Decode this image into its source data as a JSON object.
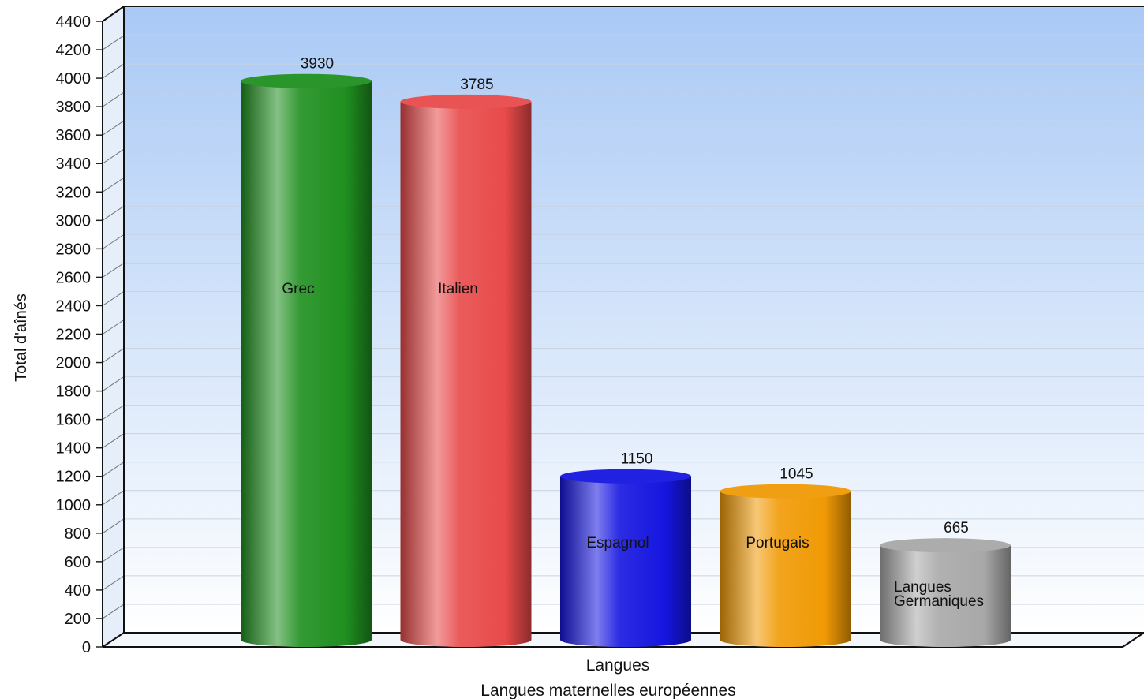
{
  "chart_data": {
    "type": "bar",
    "style": "3d-cylinder",
    "categories": [
      "Grec",
      "Italien",
      "Espagnol",
      "Portugais",
      "Langues Germaniques"
    ],
    "values": [
      3930,
      3785,
      1150,
      1045,
      665
    ],
    "colors": [
      "#1f8f1f",
      "#e84a4a",
      "#1515e0",
      "#f09a05",
      "#a8a8a8"
    ],
    "xlabel": "Langues",
    "ylabel": "Total d'aînés",
    "footer": "Langues maternelles européennes",
    "ylim": [
      0,
      4400
    ],
    "ytick_step": 200,
    "grid": true,
    "legend": "none"
  }
}
